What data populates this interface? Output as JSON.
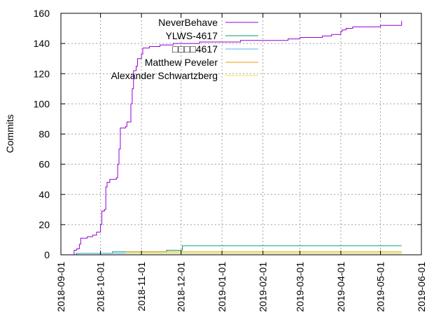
{
  "chart_data": {
    "type": "line",
    "ylabel": "Commits",
    "xlabel": "",
    "x_axis": "date",
    "xlim": [
      "2018-09-01",
      "2019-06-01"
    ],
    "ylim": [
      0,
      160
    ],
    "y_ticks": [
      0,
      20,
      40,
      60,
      80,
      100,
      120,
      140,
      160
    ],
    "x_ticks": [
      "2018-09-01",
      "2018-10-01",
      "2018-11-01",
      "2018-12-01",
      "2019-01-01",
      "2019-02-01",
      "2019-03-01",
      "2019-04-01",
      "2019-05-01",
      "2019-06-01"
    ],
    "grid": true,
    "legend_position": "top-left",
    "line_shape": "step",
    "series": [
      {
        "name": "NeverBehave",
        "color": "#9400d3",
        "points": [
          [
            "2018-09-10",
            0
          ],
          [
            "2018-09-11",
            3
          ],
          [
            "2018-09-13",
            4
          ],
          [
            "2018-09-15",
            7
          ],
          [
            "2018-09-16",
            11
          ],
          [
            "2018-09-21",
            12
          ],
          [
            "2018-09-25",
            13
          ],
          [
            "2018-09-28",
            15
          ],
          [
            "2018-10-01",
            20
          ],
          [
            "2018-10-02",
            29
          ],
          [
            "2018-10-04",
            30
          ],
          [
            "2018-10-05",
            45
          ],
          [
            "2018-10-06",
            48
          ],
          [
            "2018-10-08",
            50
          ],
          [
            "2018-10-13",
            51
          ],
          [
            "2018-10-14",
            60
          ],
          [
            "2018-10-15",
            70
          ],
          [
            "2018-10-16",
            84
          ],
          [
            "2018-10-20",
            85
          ],
          [
            "2018-10-21",
            88
          ],
          [
            "2018-10-24",
            100
          ],
          [
            "2018-10-25",
            110
          ],
          [
            "2018-10-26",
            122
          ],
          [
            "2018-10-28",
            125
          ],
          [
            "2018-10-29",
            130
          ],
          [
            "2018-11-01",
            133
          ],
          [
            "2018-11-02",
            137
          ],
          [
            "2018-11-07",
            138
          ],
          [
            "2018-11-15",
            139
          ],
          [
            "2018-11-25",
            140
          ],
          [
            "2018-12-15",
            141
          ],
          [
            "2019-01-05",
            141
          ],
          [
            "2019-01-15",
            142
          ],
          [
            "2019-02-20",
            143
          ],
          [
            "2019-03-01",
            144
          ],
          [
            "2019-03-18",
            145
          ],
          [
            "2019-03-25",
            146
          ],
          [
            "2019-04-01",
            148
          ],
          [
            "2019-04-02",
            149
          ],
          [
            "2019-04-05",
            150
          ],
          [
            "2019-04-10",
            151
          ],
          [
            "2019-05-01",
            152
          ],
          [
            "2019-05-17",
            152
          ],
          [
            "2019-05-17",
            155
          ]
        ]
      },
      {
        "name": "YLWS-4617",
        "color": "#009e73",
        "points": [
          [
            "2018-09-12",
            0
          ],
          [
            "2018-09-13",
            1
          ],
          [
            "2018-10-10",
            2
          ],
          [
            "2018-11-20",
            3
          ],
          [
            "2018-12-02",
            6
          ],
          [
            "2019-05-17",
            6
          ]
        ]
      },
      {
        "name": "□□□□4617",
        "color": "#56b4e9",
        "points": [
          [
            "2018-09-12",
            1
          ],
          [
            "2019-05-17",
            1
          ]
        ]
      },
      {
        "name": "Matthew Peveler",
        "color": "#e69f00",
        "points": [
          [
            "2018-10-20",
            2
          ],
          [
            "2019-05-17",
            2
          ]
        ]
      },
      {
        "name": "Alexander Schwartzberg",
        "color": "#f0e442",
        "points": [
          [
            "2018-10-20",
            1
          ],
          [
            "2019-05-17",
            1
          ]
        ]
      }
    ]
  }
}
